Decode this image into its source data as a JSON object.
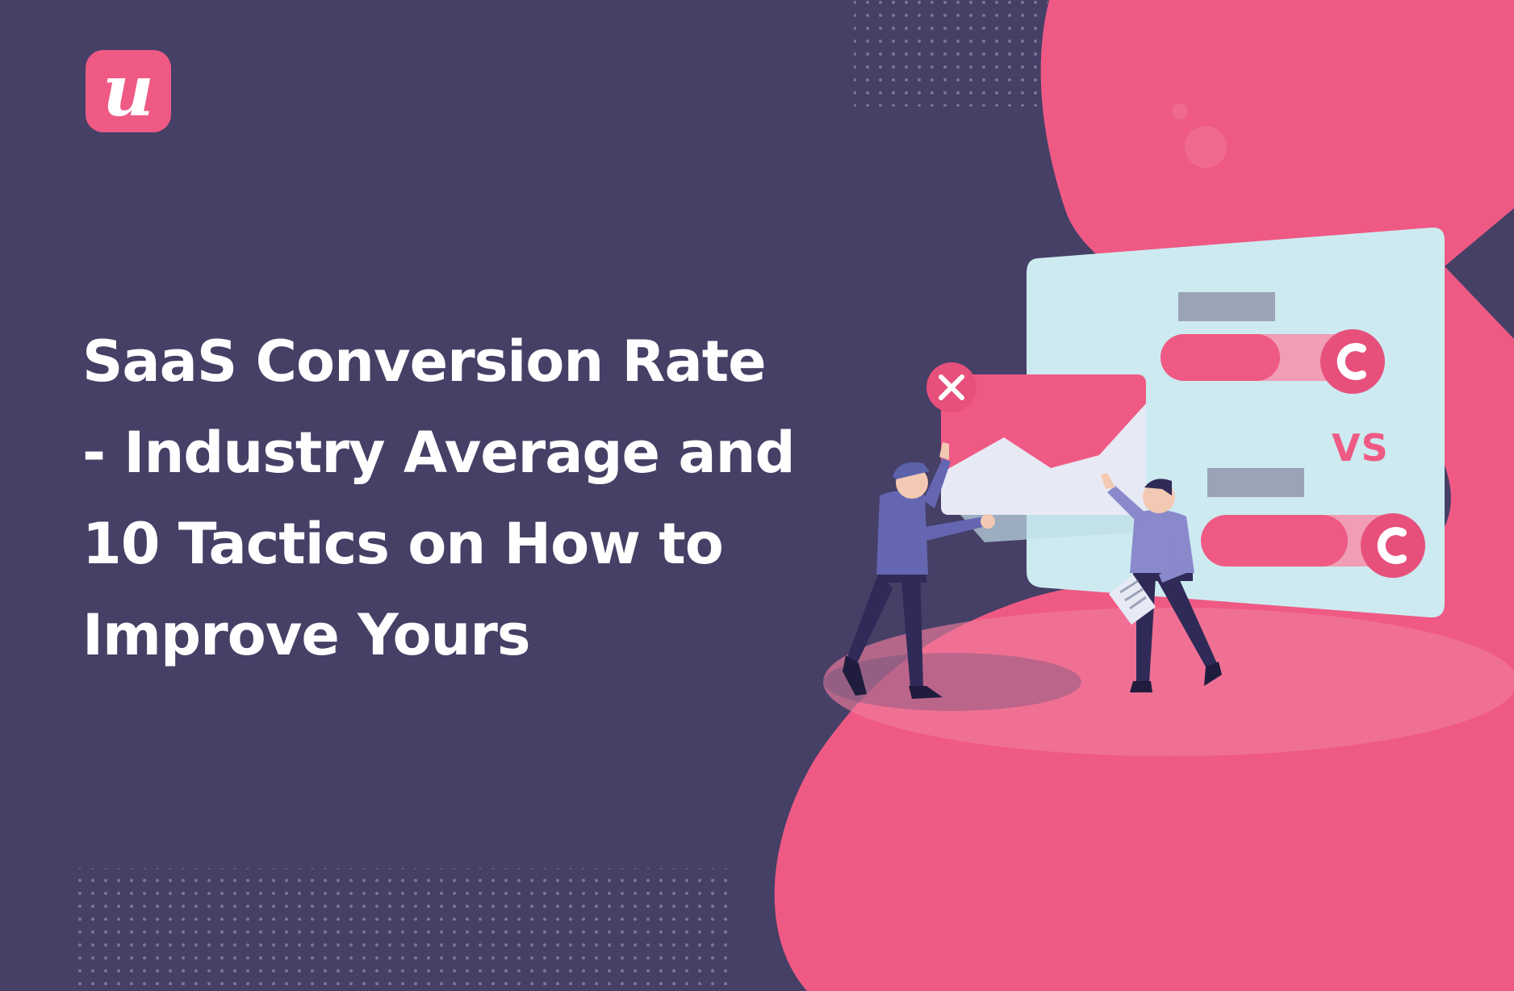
{
  "brand": {
    "logo_letter": "u",
    "logo_name": "logo-icon"
  },
  "headline": {
    "line1": "SaaS Conversion Rate",
    "line2": "- Industry Average and",
    "line3": "10 Tactics on How to",
    "line4": "Improve Yours"
  },
  "illustration": {
    "vs_label": "VS"
  },
  "colors": {
    "background": "#463f66",
    "accent_pink": "#ef5a84",
    "panel_light": "#cdeaf1",
    "text": "#ffffff"
  }
}
